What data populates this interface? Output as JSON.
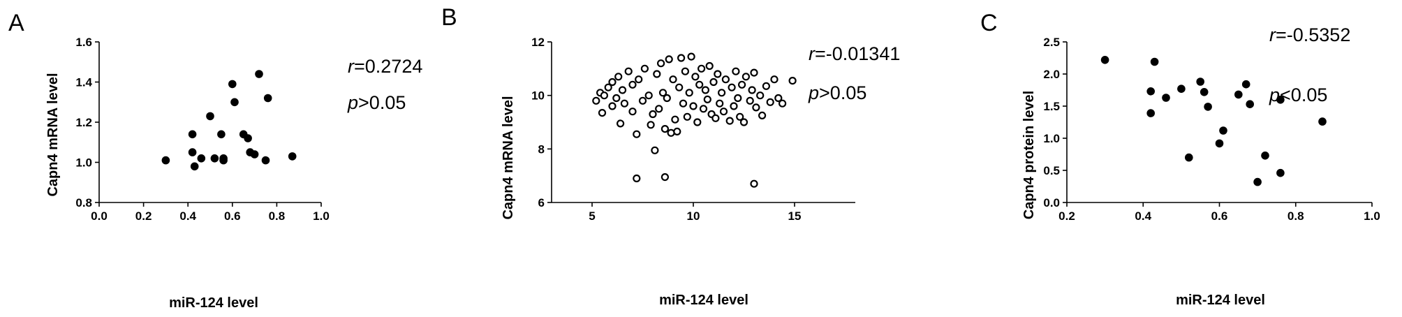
{
  "chart_data": [
    {
      "type": "scatter",
      "panel_label": "A",
      "xlabel": "miR-124 level",
      "ylabel": "Capn4 mRNA level",
      "xlim": [
        0.0,
        1.0
      ],
      "ylim": [
        0.8,
        1.6
      ],
      "xticks": [
        0.0,
        0.2,
        0.4,
        0.6,
        0.8,
        1.0
      ],
      "xtick_labels": [
        "0.0",
        "0.2",
        "0.4",
        "0.6",
        "0.8",
        "1.0"
      ],
      "yticks": [
        0.8,
        1.0,
        1.2,
        1.4,
        1.6
      ],
      "ytick_labels": [
        "0.8",
        "1.0",
        "1.2",
        "1.4",
        "1.6"
      ],
      "marker": "filled",
      "annotation": {
        "r_symbol": "r",
        "r_text": "=0.2724",
        "p_symbol": "p",
        "p_text": ">0.05"
      },
      "points": [
        [
          0.3,
          1.01
        ],
        [
          0.42,
          1.14
        ],
        [
          0.42,
          1.05
        ],
        [
          0.43,
          0.98
        ],
        [
          0.46,
          1.02
        ],
        [
          0.5,
          1.23
        ],
        [
          0.52,
          1.02
        ],
        [
          0.55,
          1.14
        ],
        [
          0.56,
          1.02
        ],
        [
          0.56,
          1.01
        ],
        [
          0.6,
          1.39
        ],
        [
          0.61,
          1.3
        ],
        [
          0.65,
          1.14
        ],
        [
          0.67,
          1.12
        ],
        [
          0.68,
          1.05
        ],
        [
          0.7,
          1.04
        ],
        [
          0.72,
          1.44
        ],
        [
          0.75,
          1.01
        ],
        [
          0.76,
          1.32
        ],
        [
          0.87,
          1.03
        ]
      ]
    },
    {
      "type": "scatter",
      "panel_label": "B",
      "xlabel": "miR-124 level",
      "ylabel": "Capn4 mRNA level",
      "xlim": [
        3,
        18
      ],
      "ylim": [
        6,
        12
      ],
      "xticks": [
        5,
        10,
        15
      ],
      "xtick_labels": [
        "5",
        "10",
        "15"
      ],
      "yticks": [
        6,
        8,
        10,
        12
      ],
      "ytick_labels": [
        "6",
        "8",
        "10",
        "12"
      ],
      "marker": "open",
      "annotation": {
        "r_symbol": "r",
        "r_text": "=-0.01341",
        "p_symbol": "p",
        "p_text": ">0.05"
      },
      "points": [
        [
          5.2,
          9.8
        ],
        [
          5.4,
          10.1
        ],
        [
          5.5,
          9.35
        ],
        [
          5.6,
          10.0
        ],
        [
          5.8,
          10.3
        ],
        [
          6.0,
          10.5
        ],
        [
          6.0,
          9.6
        ],
        [
          6.2,
          9.9
        ],
        [
          6.3,
          10.7
        ],
        [
          6.4,
          8.95
        ],
        [
          6.5,
          10.2
        ],
        [
          6.6,
          9.7
        ],
        [
          6.8,
          10.9
        ],
        [
          7.0,
          10.4
        ],
        [
          7.0,
          9.4
        ],
        [
          7.2,
          8.55
        ],
        [
          7.3,
          10.6
        ],
        [
          7.5,
          9.8
        ],
        [
          7.6,
          11.0
        ],
        [
          7.8,
          10.0
        ],
        [
          7.9,
          8.9
        ],
        [
          8.0,
          9.3
        ],
        [
          8.1,
          7.95
        ],
        [
          8.2,
          10.8
        ],
        [
          8.3,
          9.5
        ],
        [
          8.4,
          11.2
        ],
        [
          8.5,
          10.1
        ],
        [
          8.6,
          8.75
        ],
        [
          8.7,
          9.9
        ],
        [
          8.8,
          11.35
        ],
        [
          8.9,
          8.6
        ],
        [
          9.0,
          10.6
        ],
        [
          9.1,
          9.1
        ],
        [
          9.2,
          8.65
        ],
        [
          9.3,
          10.3
        ],
        [
          9.4,
          11.4
        ],
        [
          9.5,
          9.7
        ],
        [
          9.6,
          10.9
        ],
        [
          9.7,
          9.2
        ],
        [
          9.8,
          10.1
        ],
        [
          9.9,
          11.45
        ],
        [
          10.0,
          9.6
        ],
        [
          10.1,
          10.7
        ],
        [
          10.2,
          9.0
        ],
        [
          10.3,
          10.4
        ],
        [
          10.4,
          11.0
        ],
        [
          10.5,
          9.5
        ],
        [
          10.6,
          10.2
        ],
        [
          10.7,
          9.85
        ],
        [
          10.8,
          11.1
        ],
        [
          10.9,
          9.3
        ],
        [
          11.0,
          10.5
        ],
        [
          11.1,
          9.15
        ],
        [
          11.2,
          10.8
        ],
        [
          11.3,
          9.7
        ],
        [
          11.4,
          10.1
        ],
        [
          11.5,
          9.4
        ],
        [
          11.6,
          10.6
        ],
        [
          11.8,
          9.05
        ],
        [
          11.9,
          10.3
        ],
        [
          12.0,
          9.6
        ],
        [
          12.1,
          10.9
        ],
        [
          12.2,
          9.9
        ],
        [
          12.3,
          9.2
        ],
        [
          12.4,
          10.4
        ],
        [
          12.5,
          9.0
        ],
        [
          12.6,
          10.7
        ],
        [
          12.8,
          9.8
        ],
        [
          12.9,
          10.2
        ],
        [
          13.0,
          10.85
        ],
        [
          13.1,
          9.55
        ],
        [
          13.3,
          10.0
        ],
        [
          13.4,
          9.25
        ],
        [
          13.6,
          10.35
        ],
        [
          13.8,
          9.75
        ],
        [
          14.0,
          10.6
        ],
        [
          14.2,
          9.9
        ],
        [
          14.4,
          9.7
        ],
        [
          14.9,
          10.55
        ],
        [
          7.2,
          6.9
        ],
        [
          8.6,
          6.95
        ],
        [
          13.0,
          6.7
        ]
      ]
    },
    {
      "type": "scatter",
      "panel_label": "C",
      "xlabel": "miR-124 level",
      "ylabel": "Capn4 protein level",
      "xlim": [
        0.2,
        1.0
      ],
      "ylim": [
        0.0,
        2.5
      ],
      "xticks": [
        0.2,
        0.4,
        0.6,
        0.8,
        1.0
      ],
      "xtick_labels": [
        "0.2",
        "0.4",
        "0.6",
        "0.8",
        "1.0"
      ],
      "yticks": [
        0.0,
        0.5,
        1.0,
        1.5,
        2.0,
        2.5
      ],
      "ytick_labels": [
        "0.0",
        "0.5",
        "1.0",
        "1.5",
        "2.0",
        "2.5"
      ],
      "marker": "filled",
      "annotation": {
        "r_symbol": "r",
        "r_text": "=-0.5352",
        "p_symbol": "p",
        "p_text": "<0.05"
      },
      "points": [
        [
          0.3,
          2.22
        ],
        [
          0.42,
          1.39
        ],
        [
          0.42,
          1.73
        ],
        [
          0.43,
          2.19
        ],
        [
          0.46,
          1.63
        ],
        [
          0.5,
          1.77
        ],
        [
          0.52,
          0.7
        ],
        [
          0.55,
          1.88
        ],
        [
          0.56,
          1.72
        ],
        [
          0.57,
          1.49
        ],
        [
          0.6,
          0.92
        ],
        [
          0.61,
          1.12
        ],
        [
          0.65,
          1.68
        ],
        [
          0.67,
          1.84
        ],
        [
          0.68,
          1.53
        ],
        [
          0.7,
          0.32
        ],
        [
          0.72,
          0.73
        ],
        [
          0.76,
          1.6
        ],
        [
          0.76,
          0.46
        ],
        [
          0.87,
          1.26
        ]
      ]
    }
  ]
}
